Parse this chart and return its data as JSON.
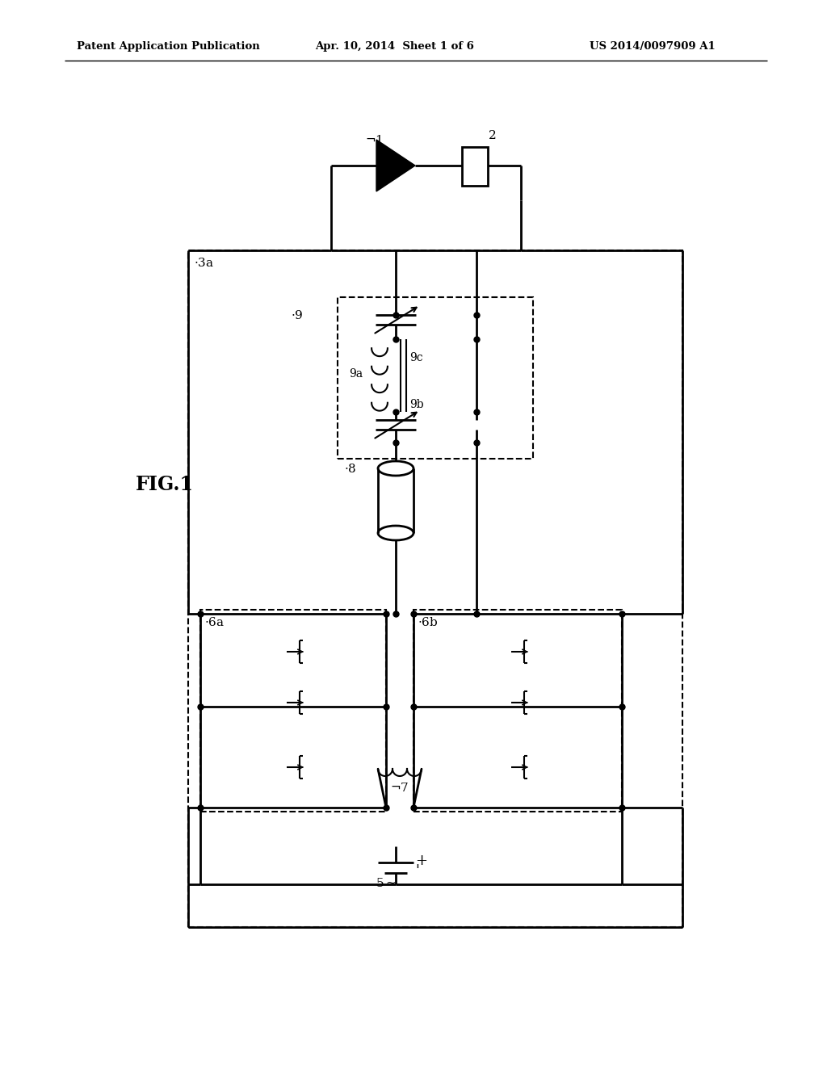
{
  "bg_color": "#ffffff",
  "header_left": "Patent Application Publication",
  "header_mid": "Apr. 10, 2014  Sheet 1 of 6",
  "header_right": "US 2014/0097909 A1"
}
